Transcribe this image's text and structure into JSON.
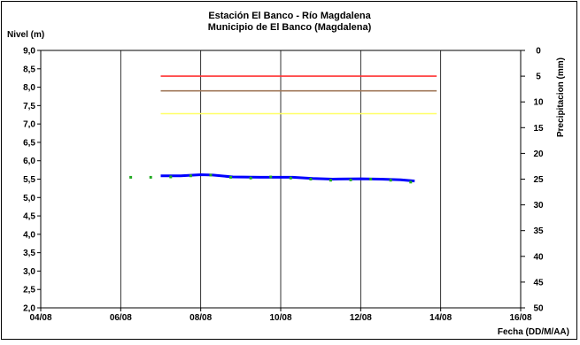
{
  "chart_data": {
    "type": "line",
    "title": "Estación El Banco - Río Magdalena",
    "subtitle": "Municipio de El Banco (Magdalena)",
    "ylabel": "Nivel (m)",
    "y2label": "Precipitacion (mm)",
    "xlabel": "Fecha (DD/M/AA)",
    "xlim": [
      4,
      16
    ],
    "ylim": [
      2.0,
      9.0
    ],
    "y2lim": [
      0,
      50
    ],
    "y2_inverted": true,
    "grid": "vertical",
    "x_ticks": [
      {
        "value": 4,
        "label": "04/08"
      },
      {
        "value": 6,
        "label": "06/08"
      },
      {
        "value": 8,
        "label": "08/08"
      },
      {
        "value": 10,
        "label": "10/08"
      },
      {
        "value": 12,
        "label": "12/08"
      },
      {
        "value": 14,
        "label": "14/08"
      },
      {
        "value": 16,
        "label": "16/08"
      }
    ],
    "y_ticks": [
      "2,0",
      "2,5",
      "3,0",
      "3,5",
      "4,0",
      "4,5",
      "5,0",
      "5,5",
      "6,0",
      "6,5",
      "7,0",
      "7,5",
      "8,0",
      "8,5",
      "9,0"
    ],
    "y_tick_values": [
      2.0,
      2.5,
      3.0,
      3.5,
      4.0,
      4.5,
      5.0,
      5.5,
      6.0,
      6.5,
      7.0,
      7.5,
      8.0,
      8.5,
      9.0
    ],
    "y2_ticks": [
      "0",
      "5",
      "10",
      "15",
      "20",
      "25",
      "30",
      "35",
      "40",
      "45",
      "50"
    ],
    "y2_tick_values": [
      0,
      5,
      10,
      15,
      20,
      25,
      30,
      35,
      40,
      45,
      50
    ],
    "thresholds": [
      {
        "level": 8.3,
        "color": "#ff3333",
        "x_start": 7.0,
        "x_end": 13.9
      },
      {
        "level": 7.9,
        "color": "#a0785a",
        "x_start": 7.0,
        "x_end": 13.9
      },
      {
        "level": 7.28,
        "color": "#ffff66",
        "x_start": 7.0,
        "x_end": 13.9
      }
    ],
    "series": [
      {
        "type": "line",
        "color": "#0000ff",
        "x": [
          7.0,
          7.5,
          8.0,
          8.3,
          8.8,
          9.5,
          10.3,
          10.8,
          11.3,
          12.0,
          12.5,
          13.0,
          13.35
        ],
        "y": [
          5.59,
          5.59,
          5.62,
          5.61,
          5.56,
          5.55,
          5.55,
          5.52,
          5.5,
          5.51,
          5.5,
          5.48,
          5.45
        ]
      },
      {
        "type": "scatter",
        "color": "#22aa22",
        "x": [
          6.25,
          6.75,
          7.25,
          7.75,
          8.25,
          8.75,
          9.25,
          9.75,
          10.25,
          10.75,
          11.25,
          11.75,
          12.25,
          12.75,
          13.25
        ],
        "y": [
          5.55,
          5.55,
          5.56,
          5.59,
          5.61,
          5.55,
          5.53,
          5.56,
          5.53,
          5.5,
          5.47,
          5.48,
          5.5,
          5.47,
          5.42
        ]
      }
    ],
    "colors": {
      "axis": "#000000",
      "grid": "#000000"
    }
  }
}
